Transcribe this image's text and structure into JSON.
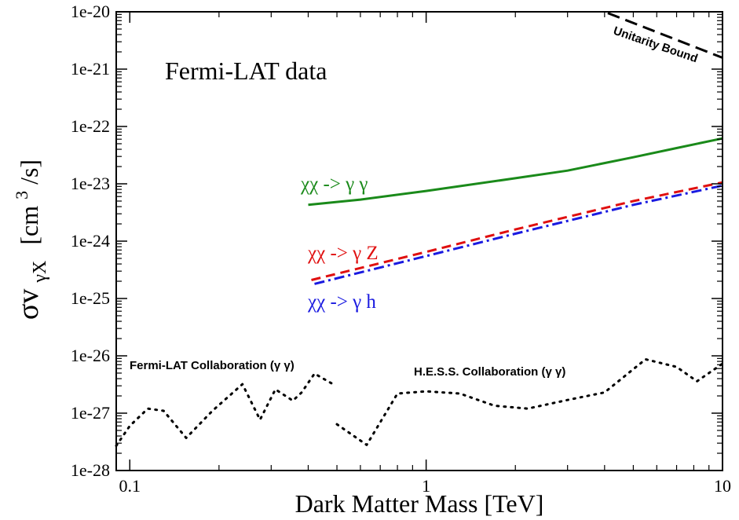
{
  "chart_data": {
    "type": "line",
    "x_scale": "log",
    "y_scale": "log",
    "xlim": [
      0.09,
      10
    ],
    "ylim": [
      1e-28,
      1e-20
    ],
    "xlabel": "Dark Matter Mass [TeV]",
    "ylabel_main": "σv",
    "ylabel_sub": "γX",
    "ylabel_unit_pre": "[cm",
    "ylabel_unit_sup": "3",
    "ylabel_unit_post": "/s]",
    "x_ticks": [
      0.1,
      1,
      10
    ],
    "x_tick_labels": [
      "0.1",
      "1",
      "10"
    ],
    "y_ticks": [
      1e-20,
      1e-21,
      1e-22,
      1e-23,
      1e-24,
      1e-25,
      1e-26,
      1e-27,
      1e-28
    ],
    "y_tick_labels": [
      "1e-20",
      "1e-21",
      "1e-22",
      "1e-23",
      "1e-24",
      "1e-25",
      "1e-26",
      "1e-27",
      "1e-28"
    ],
    "grid": false,
    "series": [
      {
        "name": "χχ -> γγ",
        "color": "#1a8a1a",
        "style": "solid",
        "x": [
          0.4,
          0.6,
          1.0,
          2.0,
          3.0,
          5.0,
          7.0,
          10.0
        ],
        "y": [
          4.3e-24,
          5.3e-24,
          7.5e-24,
          1.25e-23,
          1.7e-23,
          2.9e-23,
          4.2e-23,
          6.2e-23
        ]
      },
      {
        "name": "χχ -> γZ",
        "color": "#e01010",
        "style": "dashed",
        "x": [
          0.41,
          1.0,
          2.0,
          5.0,
          10.0
        ],
        "y": [
          2.1e-25,
          6.5e-25,
          1.6e-24,
          5e-24,
          1.06e-23
        ]
      },
      {
        "name": "χχ -> γh",
        "color": "#1a1ae0",
        "style": "dashdot",
        "x": [
          0.42,
          1.0,
          2.0,
          5.0,
          10.0
        ],
        "y": [
          1.8e-25,
          5.5e-25,
          1.35e-24,
          4.3e-24,
          9.3e-24
        ]
      },
      {
        "name": "Fermi-LAT Collaboration (γγ)",
        "color": "#000000",
        "style": "dotted",
        "x": [
          0.09,
          0.1,
          0.115,
          0.13,
          0.155,
          0.19,
          0.24,
          0.275,
          0.31,
          0.355,
          0.38,
          0.42,
          0.48
        ],
        "y": [
          2.7e-28,
          6e-28,
          1.2e-27,
          1.1e-27,
          3.7e-28,
          1.1e-27,
          3.2e-27,
          7.7e-28,
          2.6e-27,
          1.65e-27,
          2.3e-27,
          4.9e-27,
          3.3e-27
        ]
      },
      {
        "name": "H.E.S.S. Collaboration (γγ)",
        "color": "#000000",
        "style": "dotted",
        "x": [
          0.5,
          0.63,
          0.8,
          1.0,
          1.3,
          1.7,
          2.2,
          3.0,
          4.0,
          5.5,
          7.0,
          8.2,
          10.0
        ],
        "y": [
          6.4e-28,
          2.8e-28,
          2.2e-27,
          2.4e-27,
          2.2e-27,
          1.35e-27,
          1.2e-27,
          1.7e-27,
          2.3e-27,
          8.7e-27,
          6.4e-27,
          3.6e-27,
          7.3e-27
        ]
      },
      {
        "name": "Unitarity Bound",
        "color": "#000000",
        "style": "longdash",
        "x": [
          4.1,
          10.0
        ],
        "y": [
          9.5e-21,
          1.58e-21
        ]
      }
    ],
    "annotations": {
      "panel_title": "Fermi-LAT data",
      "gg_label": "χχ -> γ γ",
      "gz_label": "χχ -> γ Z",
      "gh_label": "χχ -> γ h",
      "fermi_label": "Fermi-LAT Collaboration (γ γ)",
      "hess_label": "H.E.S.S. Collaboration (γ γ)",
      "unitarity_label": "Unitarity Bound"
    }
  }
}
